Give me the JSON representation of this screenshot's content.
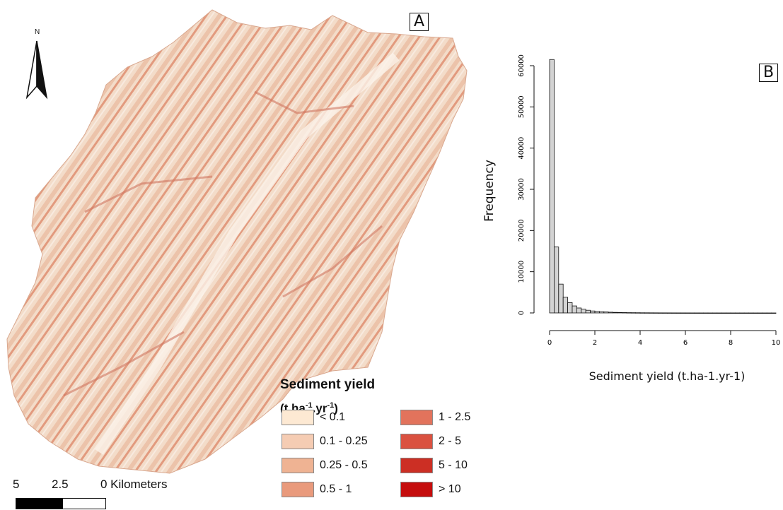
{
  "panel_a_label": "A",
  "panel_b_label": "B",
  "north_label": "N",
  "scale": {
    "labels": [
      "5",
      "2.5",
      "0 Kilometers"
    ]
  },
  "legend": {
    "title": "Sediment yield",
    "units_parts": [
      "(t.ha",
      "-1",
      ".yr",
      "-1",
      ")"
    ],
    "items": [
      {
        "label": "< 0.1",
        "color": "#fde9d3"
      },
      {
        "label": "0.1 - 0.25",
        "color": "#f5ccb3"
      },
      {
        "label": "0.25 - 0.5",
        "color": "#efb393"
      },
      {
        "label": "0.5 - 1",
        "color": "#e99a7c"
      },
      {
        "label": "1 - 2.5",
        "color": "#e2735c"
      },
      {
        "label": "2 - 5",
        "color": "#da5140"
      },
      {
        "label": "5 - 10",
        "color": "#cc2f24"
      },
      {
        "label": "> 10",
        "color": "#c50d0d"
      }
    ]
  },
  "chart_data": {
    "type": "bar",
    "title": "",
    "xlabel": "Sediment yield (t.ha-1.yr-1)",
    "ylabel": "Frequency",
    "xlim": [
      0,
      10
    ],
    "ylim": [
      0,
      60000
    ],
    "xticks": [
      "0",
      "2",
      "4",
      "6",
      "8",
      "10"
    ],
    "yticks": [
      "0",
      "10000",
      "20000",
      "30000",
      "40000",
      "50000",
      "60000"
    ],
    "bin_width": 0.2,
    "values": [
      61500,
      16000,
      7000,
      3800,
      2500,
      1700,
      1200,
      900,
      650,
      480,
      370,
      290,
      230,
      180,
      140,
      110,
      90,
      70,
      60,
      50,
      40,
      35,
      30,
      25,
      20,
      18,
      15,
      12,
      10,
      9,
      8,
      7,
      6,
      5,
      5,
      4,
      4,
      3,
      3,
      3,
      2,
      2,
      2,
      2,
      2,
      1,
      1,
      1,
      1,
      1
    ],
    "bar_color": "#d3d3d3"
  }
}
